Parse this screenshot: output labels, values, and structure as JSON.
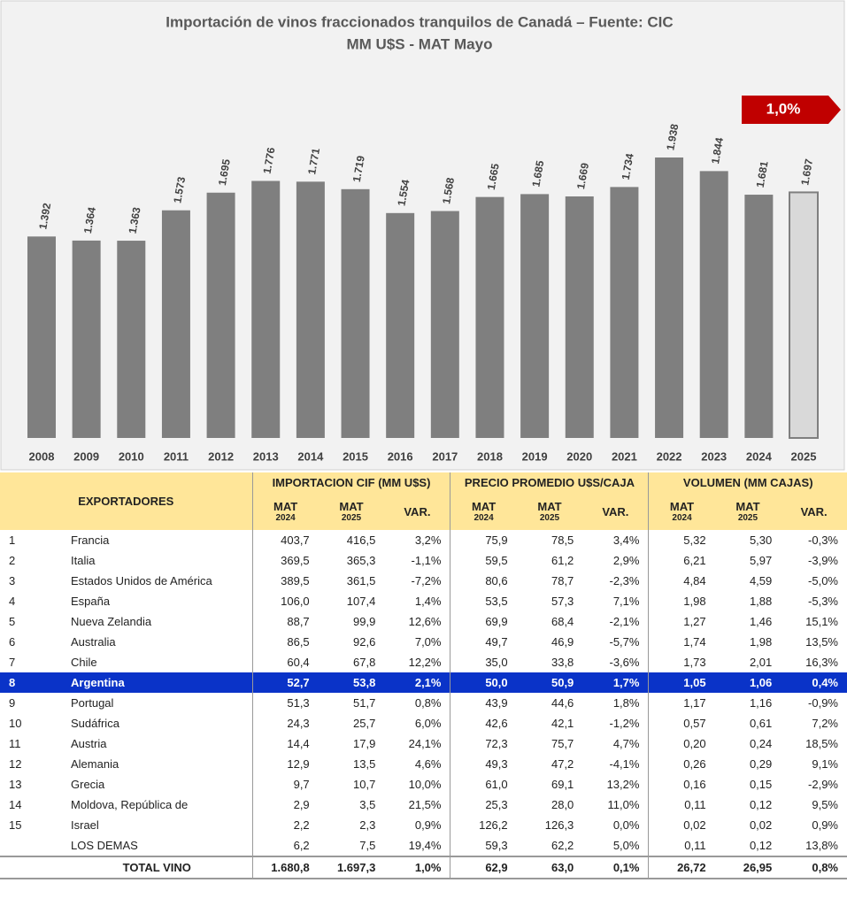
{
  "chart_data": {
    "type": "bar",
    "title": "Importación de vinos fraccionados tranquilos de Canadá – Fuente: CIC",
    "subtitle": "MM U$S - MAT Mayo",
    "categories": [
      "2008",
      "2009",
      "2010",
      "2011",
      "2012",
      "2013",
      "2014",
      "2015",
      "2016",
      "2017",
      "2018",
      "2019",
      "2020",
      "2021",
      "2022",
      "2023",
      "2024",
      "2025"
    ],
    "values": [
      1392,
      1364,
      1363,
      1573,
      1695,
      1776,
      1771,
      1719,
      1554,
      1568,
      1665,
      1685,
      1669,
      1734,
      1938,
      1844,
      1681,
      1697
    ],
    "value_labels": [
      "1.392",
      "1.364",
      "1.363",
      "1.573",
      "1.695",
      "1.776",
      "1.771",
      "1.719",
      "1.554",
      "1.568",
      "1.665",
      "1.685",
      "1.669",
      "1.734",
      "1.938",
      "1.844",
      "1.681",
      "1.697"
    ],
    "colors": [
      "#7f7f7f",
      "#7f7f7f",
      "#7f7f7f",
      "#7f7f7f",
      "#7f7f7f",
      "#7f7f7f",
      "#7f7f7f",
      "#7f7f7f",
      "#7f7f7f",
      "#7f7f7f",
      "#7f7f7f",
      "#7f7f7f",
      "#7f7f7f",
      "#7f7f7f",
      "#7f7f7f",
      "#7f7f7f",
      "#7f7f7f",
      "#d9d9d9"
    ],
    "annotation": "1,0%"
  },
  "table": {
    "label_header": "EXPORTADORES",
    "groups": [
      "IMPORTACION CIF (MM U$S)",
      "PRECIO PROMEDIO U$S/CAJA",
      "VOLUMEN (MM CAJAS)"
    ],
    "subheaders": [
      [
        "MAT",
        "2024"
      ],
      [
        "MAT",
        "2025"
      ],
      [
        "VAR."
      ]
    ],
    "rows": [
      {
        "rank": "1",
        "name": "Francia",
        "cells": [
          "403,7",
          "416,5",
          "3,2%",
          "75,9",
          "78,5",
          "3,4%",
          "5,32",
          "5,30",
          "-0,3%"
        ]
      },
      {
        "rank": "2",
        "name": "Italia",
        "cells": [
          "369,5",
          "365,3",
          "-1,1%",
          "59,5",
          "61,2",
          "2,9%",
          "6,21",
          "5,97",
          "-3,9%"
        ]
      },
      {
        "rank": "3",
        "name": "Estados Unidos de América",
        "cells": [
          "389,5",
          "361,5",
          "-7,2%",
          "80,6",
          "78,7",
          "-2,3%",
          "4,84",
          "4,59",
          "-5,0%"
        ]
      },
      {
        "rank": "4",
        "name": "España",
        "cells": [
          "106,0",
          "107,4",
          "1,4%",
          "53,5",
          "57,3",
          "7,1%",
          "1,98",
          "1,88",
          "-5,3%"
        ]
      },
      {
        "rank": "5",
        "name": "Nueva Zelandia",
        "cells": [
          "88,7",
          "99,9",
          "12,6%",
          "69,9",
          "68,4",
          "-2,1%",
          "1,27",
          "1,46",
          "15,1%"
        ]
      },
      {
        "rank": "6",
        "name": "Australia",
        "cells": [
          "86,5",
          "92,6",
          "7,0%",
          "49,7",
          "46,9",
          "-5,7%",
          "1,74",
          "1,98",
          "13,5%"
        ]
      },
      {
        "rank": "7",
        "name": "Chile",
        "cells": [
          "60,4",
          "67,8",
          "12,2%",
          "35,0",
          "33,8",
          "-3,6%",
          "1,73",
          "2,01",
          "16,3%"
        ]
      },
      {
        "rank": "8",
        "name": "Argentina",
        "highlight": true,
        "cells": [
          "52,7",
          "53,8",
          "2,1%",
          "50,0",
          "50,9",
          "1,7%",
          "1,05",
          "1,06",
          "0,4%"
        ]
      },
      {
        "rank": "9",
        "name": "Portugal",
        "cells": [
          "51,3",
          "51,7",
          "0,8%",
          "43,9",
          "44,6",
          "1,8%",
          "1,17",
          "1,16",
          "-0,9%"
        ]
      },
      {
        "rank": "10",
        "name": "Sudáfrica",
        "cells": [
          "24,3",
          "25,7",
          "6,0%",
          "42,6",
          "42,1",
          "-1,2%",
          "0,57",
          "0,61",
          "7,2%"
        ]
      },
      {
        "rank": "11",
        "name": "Austria",
        "cells": [
          "14,4",
          "17,9",
          "24,1%",
          "72,3",
          "75,7",
          "4,7%",
          "0,20",
          "0,24",
          "18,5%"
        ]
      },
      {
        "rank": "12",
        "name": "Alemania",
        "cells": [
          "12,9",
          "13,5",
          "4,6%",
          "49,3",
          "47,2",
          "-4,1%",
          "0,26",
          "0,29",
          "9,1%"
        ]
      },
      {
        "rank": "13",
        "name": "Grecia",
        "cells": [
          "9,7",
          "10,7",
          "10,0%",
          "61,0",
          "69,1",
          "13,2%",
          "0,16",
          "0,15",
          "-2,9%"
        ]
      },
      {
        "rank": "14",
        "name": "Moldova, República de",
        "cells": [
          "2,9",
          "3,5",
          "21,5%",
          "25,3",
          "28,0",
          "11,0%",
          "0,11",
          "0,12",
          "9,5%"
        ]
      },
      {
        "rank": "15",
        "name": "Israel",
        "cells": [
          "2,2",
          "2,3",
          "0,9%",
          "126,2",
          "126,3",
          "0,0%",
          "0,02",
          "0,02",
          "0,9%"
        ]
      },
      {
        "name": "LOS DEMAS",
        "cells": [
          "6,2",
          "7,5",
          "19,4%",
          "59,3",
          "62,2",
          "5,0%",
          "0,11",
          "0,12",
          "13,8%"
        ]
      }
    ],
    "total": {
      "name": "TOTAL VINO",
      "cells": [
        "1.680,8",
        "1.697,3",
        "1,0%",
        "62,9",
        "63,0",
        "0,1%",
        "26,72",
        "26,95",
        "0,8%"
      ]
    }
  }
}
